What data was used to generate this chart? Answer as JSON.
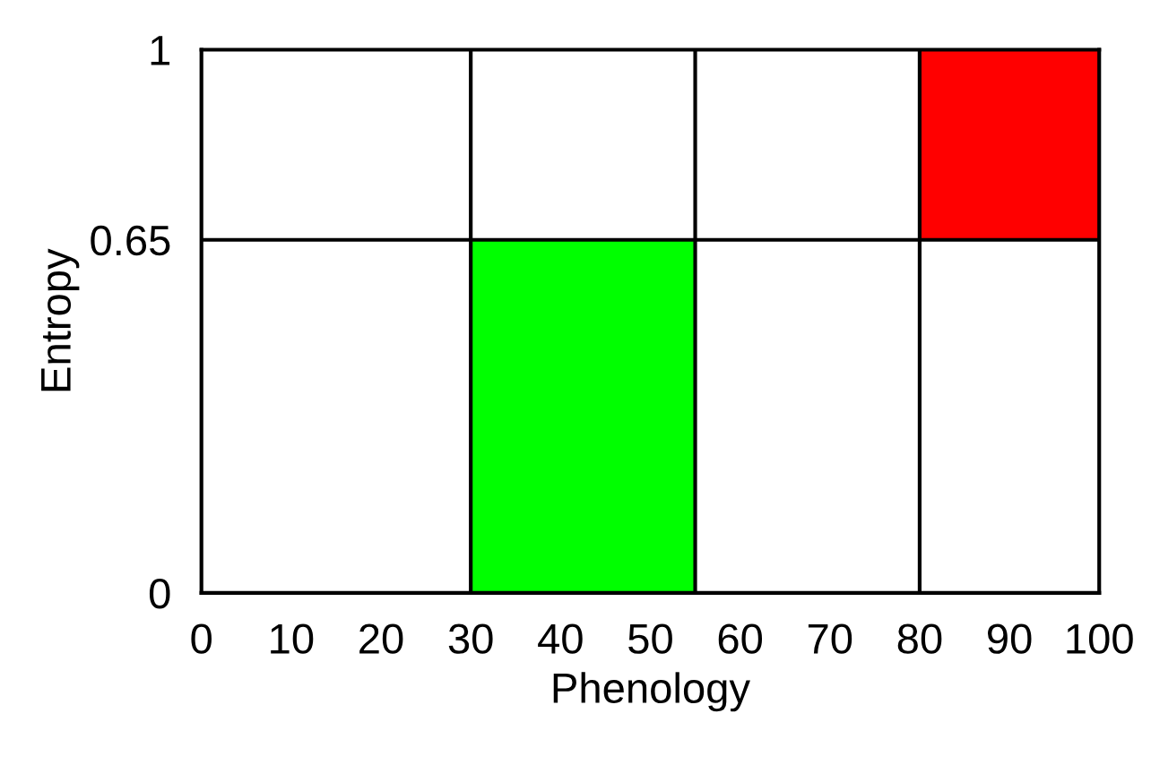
{
  "chart_data": {
    "type": "bar",
    "xlabel": "Phenology",
    "ylabel": "Entropy",
    "x": [
      42.5,
      90
    ],
    "values": [
      0.65,
      0.35
    ],
    "base": [
      0,
      0.65
    ],
    "colors": [
      "#00ff00",
      "#ff0000"
    ],
    "xlim": [
      0,
      100
    ],
    "ylim": [
      0,
      1
    ],
    "xticks": [
      0,
      10,
      20,
      30,
      40,
      50,
      60,
      70,
      80,
      90,
      100
    ],
    "yticks": [
      0,
      0.65,
      1
    ],
    "ref_lines": [
      {
        "axis": "x",
        "value": 30,
        "color": "#000000"
      },
      {
        "axis": "x",
        "value": 55,
        "color": "#000000"
      },
      {
        "axis": "x",
        "value": 80,
        "color": "#000000"
      },
      {
        "axis": "y",
        "value": 0.65,
        "color": "#000000"
      }
    ],
    "grid": false,
    "legend": false
  }
}
